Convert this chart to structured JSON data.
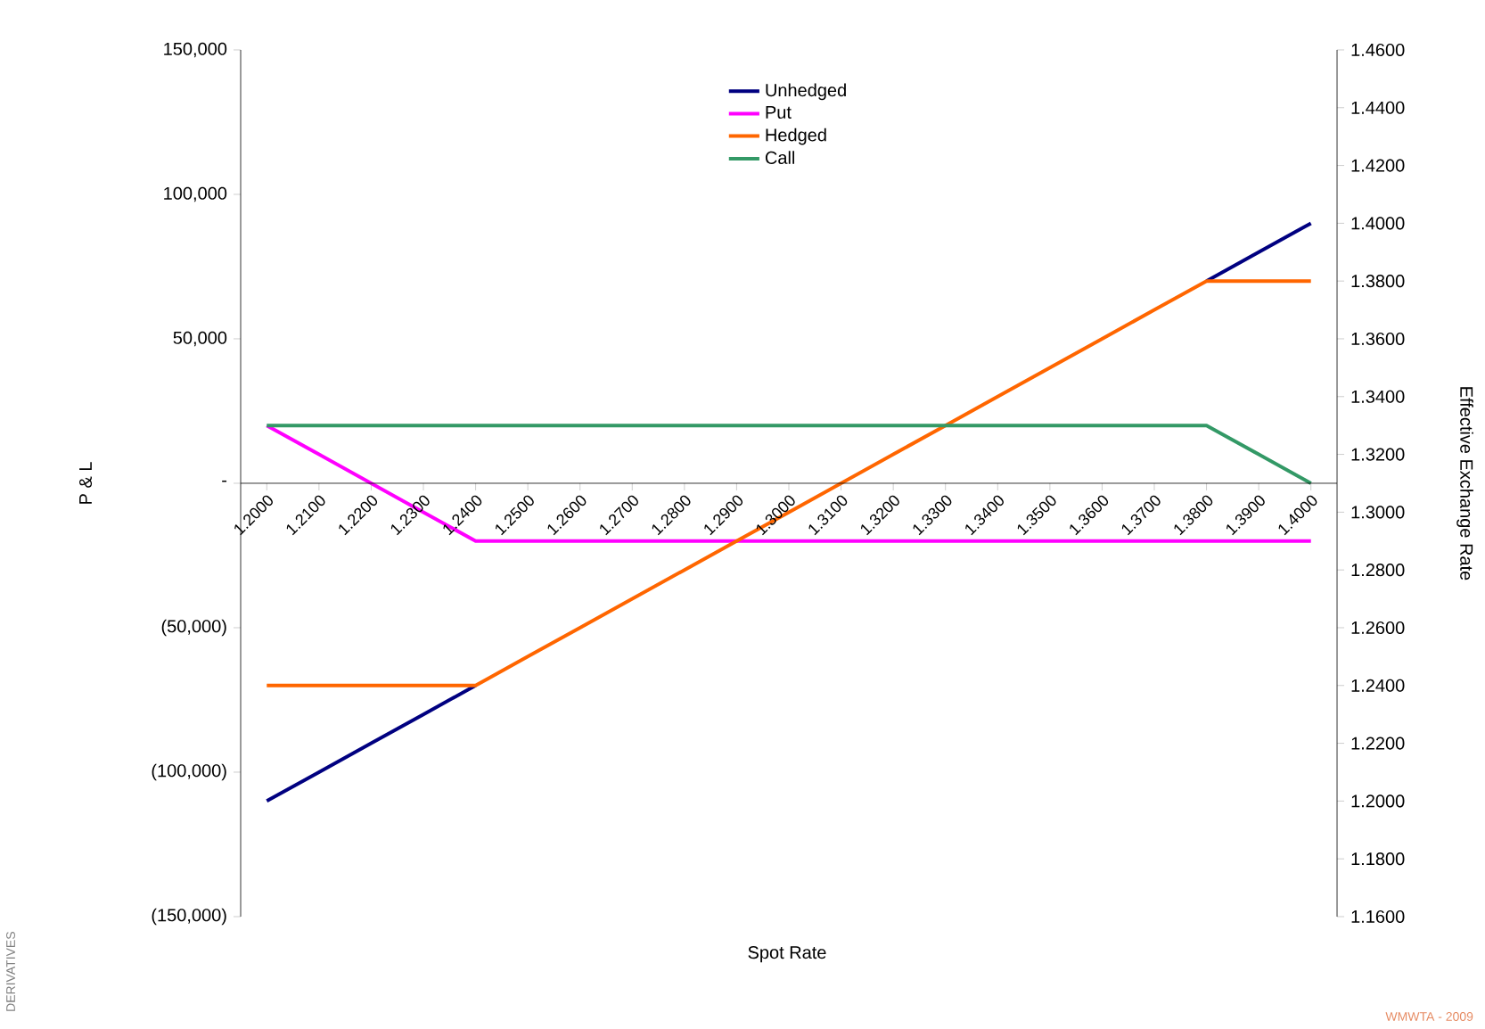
{
  "chart_data": {
    "type": "line",
    "xlabel": "Spot Rate",
    "ylabel": "P & L",
    "y2label": "Effective Exchange Rate",
    "categories": [
      "1.2000",
      "1.2100",
      "1.2200",
      "1.2300",
      "1.2400",
      "1.2500",
      "1.2600",
      "1.2700",
      "1.2800",
      "1.2900",
      "1.3000",
      "1.3100",
      "1.3200",
      "1.3300",
      "1.3400",
      "1.3500",
      "1.3600",
      "1.3700",
      "1.3800",
      "1.3900",
      "1.4000"
    ],
    "series": [
      {
        "name": "Unhedged",
        "color": "#000080",
        "values": [
          -110000,
          -100000,
          -90000,
          -80000,
          -70000,
          null,
          null,
          null,
          null,
          null,
          null,
          null,
          null,
          null,
          null,
          null,
          null,
          null,
          70000,
          80000,
          90000
        ]
      },
      {
        "name": "Put",
        "color": "#ff00ff",
        "values": [
          20000,
          10000,
          0,
          -10000,
          -20000,
          -20000,
          -20000,
          -20000,
          -20000,
          -20000,
          -20000,
          -20000,
          -20000,
          -20000,
          -20000,
          -20000,
          -20000,
          -20000,
          -20000,
          -20000,
          -20000
        ]
      },
      {
        "name": "Hedged",
        "color": "#ff6600",
        "values": [
          -70000,
          -70000,
          -70000,
          -70000,
          -70000,
          -60000,
          -50000,
          -40000,
          -30000,
          -20000,
          -10000,
          0,
          10000,
          20000,
          30000,
          40000,
          50000,
          60000,
          70000,
          70000,
          70000
        ]
      },
      {
        "name": "Call",
        "color": "#339966",
        "values": [
          20000,
          20000,
          20000,
          20000,
          20000,
          20000,
          20000,
          20000,
          20000,
          20000,
          20000,
          20000,
          20000,
          20000,
          20000,
          20000,
          20000,
          20000,
          20000,
          10000,
          0
        ]
      }
    ],
    "ylim": [
      -150000,
      150000
    ],
    "yticks": [
      {
        "value": -150000,
        "label": "(150,000)"
      },
      {
        "value": -100000,
        "label": "(100,000)"
      },
      {
        "value": -50000,
        "label": "(50,000)"
      },
      {
        "value": 0,
        "label": "-"
      },
      {
        "value": 50000,
        "label": "50,000"
      },
      {
        "value": 100000,
        "label": "100,000"
      },
      {
        "value": 150000,
        "label": "150,000"
      }
    ],
    "y2lim": [
      1.16,
      1.46
    ],
    "y2ticks": [
      {
        "value": 1.16,
        "label": "1.1600"
      },
      {
        "value": 1.18,
        "label": "1.1800"
      },
      {
        "value": 1.2,
        "label": "1.2000"
      },
      {
        "value": 1.22,
        "label": "1.2200"
      },
      {
        "value": 1.24,
        "label": "1.2400"
      },
      {
        "value": 1.26,
        "label": "1.2600"
      },
      {
        "value": 1.28,
        "label": "1.2800"
      },
      {
        "value": 1.3,
        "label": "1.3000"
      },
      {
        "value": 1.32,
        "label": "1.3200"
      },
      {
        "value": 1.34,
        "label": "1.3400"
      },
      {
        "value": 1.36,
        "label": "1.3600"
      },
      {
        "value": 1.38,
        "label": "1.3800"
      },
      {
        "value": 1.4,
        "label": "1.4000"
      },
      {
        "value": 1.42,
        "label": "1.4200"
      },
      {
        "value": 1.44,
        "label": "1.4400"
      },
      {
        "value": 1.46,
        "label": "1.4600"
      }
    ],
    "legend": "top",
    "grid": false,
    "marker": "none",
    "line_style": "solid",
    "annotations": [
      "DERIVATIVES",
      "WMWTA - 2009"
    ]
  }
}
